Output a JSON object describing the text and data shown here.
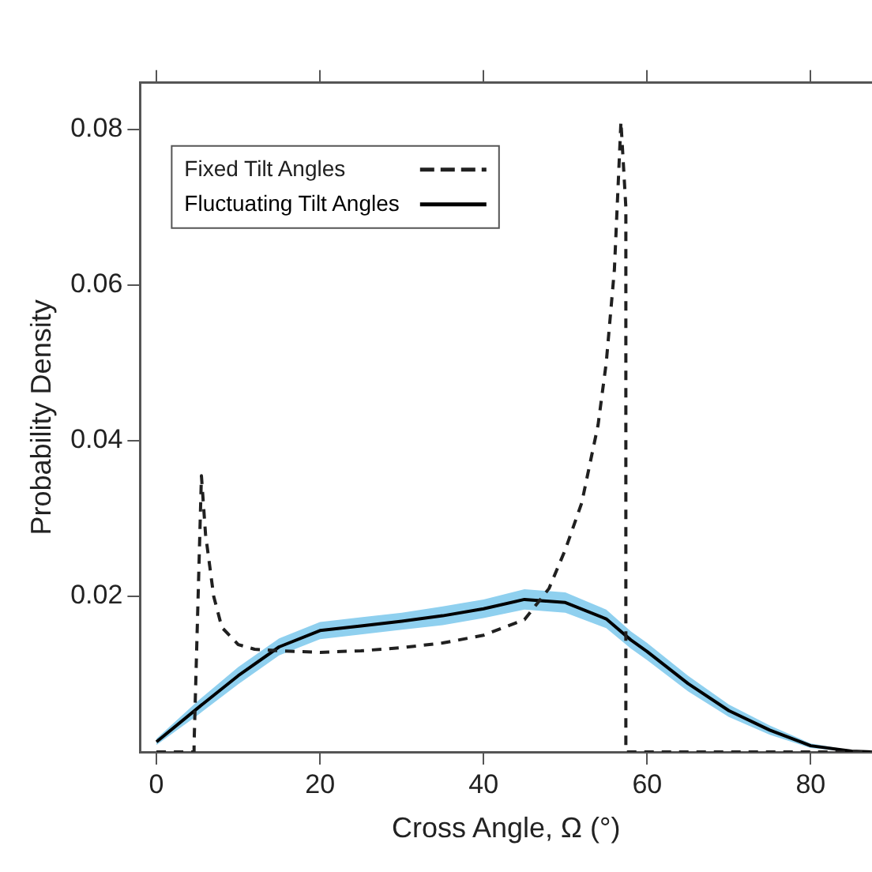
{
  "chart_data": {
    "type": "line",
    "xlabel": "Cross Angle, Ω (°)",
    "ylabel": "Probability Density",
    "xlim": [
      -2,
      87.5
    ],
    "xticks": [
      0,
      20,
      40,
      60,
      80
    ],
    "ylim": [
      0,
      0.086
    ],
    "yticks": [
      0.02,
      0.04,
      0.06,
      0.08
    ],
    "grid": false,
    "legend": "top left",
    "series": [
      {
        "name": "Fixed Tilt Angles",
        "color": "#202020",
        "line_style": "dashed",
        "x": [
          0,
          4.6,
          4.6,
          5.5,
          6,
          7,
          8,
          10,
          12,
          15,
          20,
          25,
          30,
          35,
          40,
          45,
          48,
          50,
          52,
          54,
          55,
          56,
          56.8,
          57.4,
          57.4,
          70,
          87.5
        ],
        "values": [
          0,
          0,
          0.001,
          0.0355,
          0.028,
          0.02,
          0.016,
          0.0138,
          0.0132,
          0.013,
          0.0128,
          0.013,
          0.0134,
          0.014,
          0.015,
          0.017,
          0.021,
          0.026,
          0.032,
          0.042,
          0.05,
          0.062,
          0.081,
          0.07,
          0,
          0,
          0
        ]
      },
      {
        "name": "Fluctuating Tilt Angles",
        "color": "#000000",
        "line_style": "solid",
        "x": [
          0,
          5,
          10,
          15,
          20,
          25,
          30,
          35,
          40,
          45,
          50,
          55,
          58,
          60,
          65,
          70,
          75,
          80,
          85,
          87.5
        ],
        "values": [
          0.0013,
          0.0056,
          0.0098,
          0.0135,
          0.0156,
          0.0162,
          0.0168,
          0.0175,
          0.0184,
          0.0196,
          0.0192,
          0.0171,
          0.0144,
          0.0129,
          0.0088,
          0.0053,
          0.0028,
          0.0008,
          0.0001,
          0
        ],
        "lower": [
          0.0009,
          0.0047,
          0.0087,
          0.0124,
          0.0145,
          0.0151,
          0.0157,
          0.0163,
          0.0172,
          0.0183,
          0.0179,
          0.0159,
          0.0133,
          0.0118,
          0.0078,
          0.0045,
          0.0022,
          0.0005,
          0,
          0
        ],
        "upper": [
          0.0017,
          0.0065,
          0.0109,
          0.0146,
          0.0167,
          0.0173,
          0.0179,
          0.0187,
          0.0196,
          0.0209,
          0.0205,
          0.0183,
          0.0155,
          0.014,
          0.0098,
          0.0061,
          0.0034,
          0.0011,
          0.0002,
          0.0001
        ]
      }
    ]
  }
}
